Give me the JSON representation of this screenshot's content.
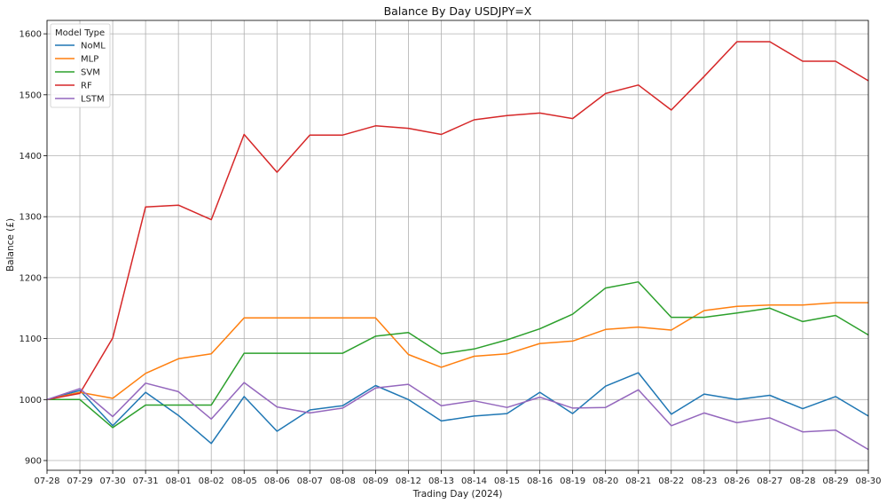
{
  "chart_data": {
    "type": "line",
    "title": "Balance By Day USDJPY=X",
    "xlabel": "Trading Day (2024)",
    "ylabel": "Balance (£)",
    "categories": [
      "07-28",
      "07-29",
      "07-30",
      "07-31",
      "08-01",
      "08-02",
      "08-05",
      "08-06",
      "08-07",
      "08-08",
      "08-09",
      "08-12",
      "08-13",
      "08-14",
      "08-15",
      "08-16",
      "08-19",
      "08-20",
      "08-21",
      "08-22",
      "08-23",
      "08-26",
      "08-27",
      "08-28",
      "08-29",
      "08-30"
    ],
    "ylim": [
      884,
      1622
    ],
    "yticks": [
      900,
      1000,
      1100,
      1200,
      1300,
      1400,
      1500,
      1600
    ],
    "grid": true,
    "legend": {
      "title": "Model Type",
      "placement": "top-left"
    },
    "series": [
      {
        "name": "NoML",
        "color": "#1f77b4",
        "values": [
          1000,
          1015,
          957,
          1012,
          974,
          928,
          1005,
          948,
          983,
          990,
          1023,
          1000,
          965,
          973,
          977,
          1012,
          977,
          1022,
          1044,
          976,
          1009,
          1000,
          1007,
          985,
          1005,
          973
        ]
      },
      {
        "name": "MLP",
        "color": "#ff7f0e",
        "values": [
          1000,
          1012,
          1002,
          1043,
          1067,
          1075,
          1134,
          1134,
          1134,
          1134,
          1134,
          1074,
          1053,
          1071,
          1075,
          1092,
          1096,
          1115,
          1119,
          1114,
          1146,
          1153,
          1155,
          1155,
          1159,
          1159
        ]
      },
      {
        "name": "SVM",
        "color": "#2ca02c",
        "values": [
          1000,
          1000,
          954,
          991,
          991,
          991,
          1076,
          1076,
          1076,
          1076,
          1104,
          1110,
          1075,
          1083,
          1098,
          1116,
          1140,
          1183,
          1193,
          1135,
          1135,
          1142,
          1150,
          1128,
          1138,
          1106
        ]
      },
      {
        "name": "RF",
        "color": "#d62728",
        "values": [
          1000,
          1010,
          1101,
          1316,
          1319,
          1295,
          1435,
          1373,
          1434,
          1434,
          1449,
          1445,
          1435,
          1459,
          1466,
          1470,
          1461,
          1502,
          1516,
          1475,
          1530,
          1587,
          1587,
          1555,
          1555,
          1523
        ]
      },
      {
        "name": "LSTM",
        "color": "#9467bd",
        "values": [
          1000,
          1018,
          972,
          1027,
          1013,
          968,
          1028,
          988,
          978,
          986,
          1019,
          1025,
          990,
          998,
          987,
          1004,
          986,
          987,
          1016,
          957,
          978,
          962,
          970,
          947,
          950,
          918
        ]
      }
    ]
  }
}
